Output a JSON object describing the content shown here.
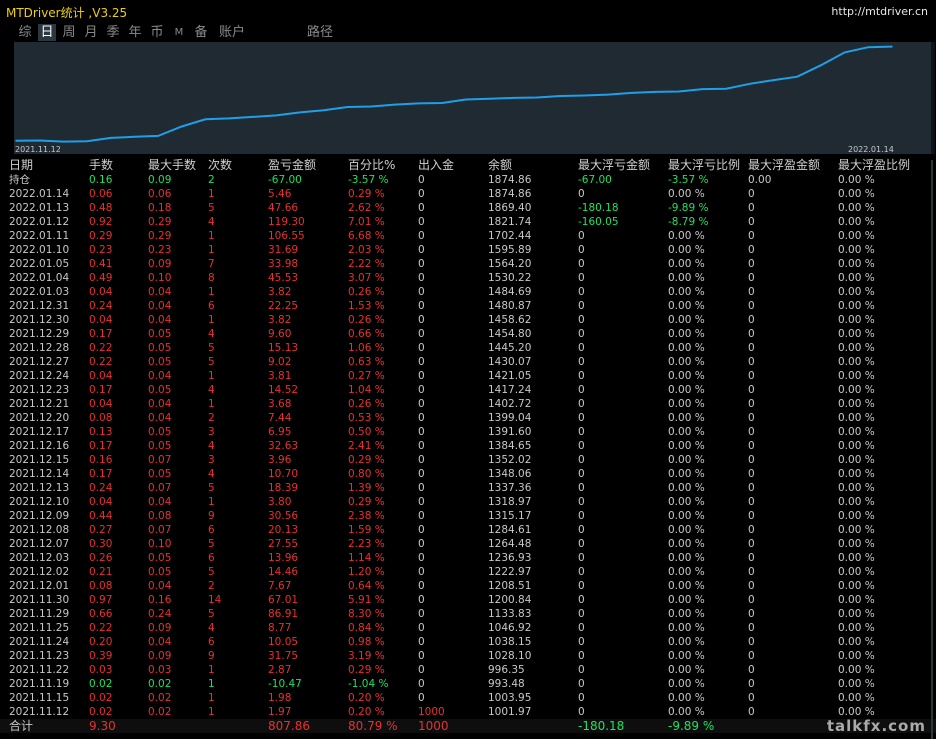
{
  "app": {
    "title": "MTDriver统计 ,V3.25",
    "url": "http://mtdriver.cn"
  },
  "tabs": [
    {
      "label": "综",
      "active": false
    },
    {
      "label": "日",
      "active": true
    },
    {
      "label": "周",
      "active": false
    },
    {
      "label": "月",
      "active": false
    },
    {
      "label": "季",
      "active": false
    },
    {
      "label": "年",
      "active": false
    },
    {
      "label": "币",
      "active": false
    },
    {
      "label": "M",
      "active": false
    },
    {
      "label": "备",
      "active": false
    },
    {
      "label": "账户",
      "active": false
    },
    {
      "label": "路径",
      "active": false
    }
  ],
  "chart_data": {
    "type": "line",
    "x_start_label": "2021.11.12",
    "x_end_label": "2022.01.14",
    "ylim": [
      990,
      1890
    ],
    "line_color": "#1ea0e8",
    "x": [
      "2021.11.12",
      "2021.11.15",
      "2021.11.19",
      "2021.11.22",
      "2021.11.23",
      "2021.11.24",
      "2021.11.25",
      "2021.11.29",
      "2021.11.30",
      "2021.12.01",
      "2021.12.02",
      "2021.12.03",
      "2021.12.07",
      "2021.12.08",
      "2021.12.09",
      "2021.12.10",
      "2021.12.13",
      "2021.12.14",
      "2021.12.15",
      "2021.12.16",
      "2021.12.17",
      "2021.12.20",
      "2021.12.21",
      "2021.12.23",
      "2021.12.24",
      "2021.12.27",
      "2021.12.28",
      "2021.12.29",
      "2021.12.30",
      "2021.12.31",
      "2022.01.03",
      "2022.01.04",
      "2022.01.05",
      "2022.01.10",
      "2022.01.11",
      "2022.01.12",
      "2022.01.13",
      "2022.01.14"
    ],
    "values": [
      1001.97,
      1003.95,
      993.48,
      996.35,
      1028.1,
      1038.15,
      1046.92,
      1133.83,
      1200.84,
      1208.51,
      1222.97,
      1236.93,
      1264.48,
      1284.61,
      1315.17,
      1318.97,
      1337.36,
      1348.06,
      1352.02,
      1384.65,
      1391.6,
      1399.04,
      1402.72,
      1417.24,
      1421.05,
      1430.07,
      1445.2,
      1454.8,
      1458.62,
      1480.87,
      1484.69,
      1530.22,
      1564.2,
      1595.89,
      1702.44,
      1821.74,
      1869.4,
      1874.86
    ]
  },
  "colors": {
    "positive": "#e83030",
    "negative": "#20e060",
    "neutral": "#c8c8c8",
    "header": "#d0d0d0",
    "total": "#e8c000"
  },
  "table": {
    "headers": [
      "日期",
      "手数",
      "最大手数",
      "次数",
      "盈亏金额",
      "百分比%",
      "出入金",
      "余额",
      "最大浮亏金额",
      "最大浮亏比例",
      "最大浮盈金额",
      "最大浮盈比例"
    ],
    "holding": {
      "date": "持仓",
      "lots": "0.16",
      "max_lots": "0.09",
      "count": "2",
      "pnl": "-67.00",
      "pct": "-3.57 %",
      "flow": "0",
      "balance": "1874.86",
      "max_loss": "-67.00",
      "max_loss_pct": "-3.57 %",
      "max_gain": "0.00",
      "max_gain_pct": "0.00 %",
      "sign": "neg"
    },
    "rows": [
      {
        "date": "2022.01.14",
        "lots": "0.06",
        "max_lots": "0.06",
        "count": "1",
        "pnl": "5.46",
        "pct": "0.29 %",
        "flow": "0",
        "balance": "1874.86",
        "max_loss": "0",
        "max_loss_pct": "0.00 %",
        "max_gain": "0",
        "max_gain_pct": "0.00 %",
        "sign": "pos"
      },
      {
        "date": "2022.01.13",
        "lots": "0.48",
        "max_lots": "0.18",
        "count": "5",
        "pnl": "47.66",
        "pct": "2.62 %",
        "flow": "0",
        "balance": "1869.40",
        "max_loss": "-180.18",
        "max_loss_pct": "-9.89 %",
        "max_gain": "0",
        "max_gain_pct": "0.00 %",
        "sign": "pos"
      },
      {
        "date": "2022.01.12",
        "lots": "0.92",
        "max_lots": "0.29",
        "count": "4",
        "pnl": "119.30",
        "pct": "7.01 %",
        "flow": "0",
        "balance": "1821.74",
        "max_loss": "-160.05",
        "max_loss_pct": "-8.79 %",
        "max_gain": "0",
        "max_gain_pct": "0.00 %",
        "sign": "pos"
      },
      {
        "date": "2022.01.11",
        "lots": "0.29",
        "max_lots": "0.29",
        "count": "1",
        "pnl": "106.55",
        "pct": "6.68 %",
        "flow": "0",
        "balance": "1702.44",
        "max_loss": "0",
        "max_loss_pct": "0.00 %",
        "max_gain": "0",
        "max_gain_pct": "0.00 %",
        "sign": "pos"
      },
      {
        "date": "2022.01.10",
        "lots": "0.23",
        "max_lots": "0.23",
        "count": "1",
        "pnl": "31.69",
        "pct": "2.03 %",
        "flow": "0",
        "balance": "1595.89",
        "max_loss": "0",
        "max_loss_pct": "0.00 %",
        "max_gain": "0",
        "max_gain_pct": "0.00 %",
        "sign": "pos"
      },
      {
        "date": "2022.01.05",
        "lots": "0.41",
        "max_lots": "0.09",
        "count": "7",
        "pnl": "33.98",
        "pct": "2.22 %",
        "flow": "0",
        "balance": "1564.20",
        "max_loss": "0",
        "max_loss_pct": "0.00 %",
        "max_gain": "0",
        "max_gain_pct": "0.00 %",
        "sign": "pos"
      },
      {
        "date": "2022.01.04",
        "lots": "0.49",
        "max_lots": "0.10",
        "count": "8",
        "pnl": "45.53",
        "pct": "3.07 %",
        "flow": "0",
        "balance": "1530.22",
        "max_loss": "0",
        "max_loss_pct": "0.00 %",
        "max_gain": "0",
        "max_gain_pct": "0.00 %",
        "sign": "pos"
      },
      {
        "date": "2022.01.03",
        "lots": "0.04",
        "max_lots": "0.04",
        "count": "1",
        "pnl": "3.82",
        "pct": "0.26 %",
        "flow": "0",
        "balance": "1484.69",
        "max_loss": "0",
        "max_loss_pct": "0.00 %",
        "max_gain": "0",
        "max_gain_pct": "0.00 %",
        "sign": "pos"
      },
      {
        "date": "2021.12.31",
        "lots": "0.24",
        "max_lots": "0.04",
        "count": "6",
        "pnl": "22.25",
        "pct": "1.53 %",
        "flow": "0",
        "balance": "1480.87",
        "max_loss": "0",
        "max_loss_pct": "0.00 %",
        "max_gain": "0",
        "max_gain_pct": "0.00 %",
        "sign": "pos"
      },
      {
        "date": "2021.12.30",
        "lots": "0.04",
        "max_lots": "0.04",
        "count": "1",
        "pnl": "3.82",
        "pct": "0.26 %",
        "flow": "0",
        "balance": "1458.62",
        "max_loss": "0",
        "max_loss_pct": "0.00 %",
        "max_gain": "0",
        "max_gain_pct": "0.00 %",
        "sign": "pos"
      },
      {
        "date": "2021.12.29",
        "lots": "0.17",
        "max_lots": "0.05",
        "count": "4",
        "pnl": "9.60",
        "pct": "0.66 %",
        "flow": "0",
        "balance": "1454.80",
        "max_loss": "0",
        "max_loss_pct": "0.00 %",
        "max_gain": "0",
        "max_gain_pct": "0.00 %",
        "sign": "pos"
      },
      {
        "date": "2021.12.28",
        "lots": "0.22",
        "max_lots": "0.05",
        "count": "5",
        "pnl": "15.13",
        "pct": "1.06 %",
        "flow": "0",
        "balance": "1445.20",
        "max_loss": "0",
        "max_loss_pct": "0.00 %",
        "max_gain": "0",
        "max_gain_pct": "0.00 %",
        "sign": "pos"
      },
      {
        "date": "2021.12.27",
        "lots": "0.22",
        "max_lots": "0.05",
        "count": "5",
        "pnl": "9.02",
        "pct": "0.63 %",
        "flow": "0",
        "balance": "1430.07",
        "max_loss": "0",
        "max_loss_pct": "0.00 %",
        "max_gain": "0",
        "max_gain_pct": "0.00 %",
        "sign": "pos"
      },
      {
        "date": "2021.12.24",
        "lots": "0.04",
        "max_lots": "0.04",
        "count": "1",
        "pnl": "3.81",
        "pct": "0.27 %",
        "flow": "0",
        "balance": "1421.05",
        "max_loss": "0",
        "max_loss_pct": "0.00 %",
        "max_gain": "0",
        "max_gain_pct": "0.00 %",
        "sign": "pos"
      },
      {
        "date": "2021.12.23",
        "lots": "0.17",
        "max_lots": "0.05",
        "count": "4",
        "pnl": "14.52",
        "pct": "1.04 %",
        "flow": "0",
        "balance": "1417.24",
        "max_loss": "0",
        "max_loss_pct": "0.00 %",
        "max_gain": "0",
        "max_gain_pct": "0.00 %",
        "sign": "pos"
      },
      {
        "date": "2021.12.21",
        "lots": "0.04",
        "max_lots": "0.04",
        "count": "1",
        "pnl": "3.68",
        "pct": "0.26 %",
        "flow": "0",
        "balance": "1402.72",
        "max_loss": "0",
        "max_loss_pct": "0.00 %",
        "max_gain": "0",
        "max_gain_pct": "0.00 %",
        "sign": "pos"
      },
      {
        "date": "2021.12.20",
        "lots": "0.08",
        "max_lots": "0.04",
        "count": "2",
        "pnl": "7.44",
        "pct": "0.53 %",
        "flow": "0",
        "balance": "1399.04",
        "max_loss": "0",
        "max_loss_pct": "0.00 %",
        "max_gain": "0",
        "max_gain_pct": "0.00 %",
        "sign": "pos"
      },
      {
        "date": "2021.12.17",
        "lots": "0.13",
        "max_lots": "0.05",
        "count": "3",
        "pnl": "6.95",
        "pct": "0.50 %",
        "flow": "0",
        "balance": "1391.60",
        "max_loss": "0",
        "max_loss_pct": "0.00 %",
        "max_gain": "0",
        "max_gain_pct": "0.00 %",
        "sign": "pos"
      },
      {
        "date": "2021.12.16",
        "lots": "0.17",
        "max_lots": "0.05",
        "count": "4",
        "pnl": "32.63",
        "pct": "2.41 %",
        "flow": "0",
        "balance": "1384.65",
        "max_loss": "0",
        "max_loss_pct": "0.00 %",
        "max_gain": "0",
        "max_gain_pct": "0.00 %",
        "sign": "pos"
      },
      {
        "date": "2021.12.15",
        "lots": "0.16",
        "max_lots": "0.07",
        "count": "3",
        "pnl": "3.96",
        "pct": "0.29 %",
        "flow": "0",
        "balance": "1352.02",
        "max_loss": "0",
        "max_loss_pct": "0.00 %",
        "max_gain": "0",
        "max_gain_pct": "0.00 %",
        "sign": "pos"
      },
      {
        "date": "2021.12.14",
        "lots": "0.17",
        "max_lots": "0.05",
        "count": "4",
        "pnl": "10.70",
        "pct": "0.80 %",
        "flow": "0",
        "balance": "1348.06",
        "max_loss": "0",
        "max_loss_pct": "0.00 %",
        "max_gain": "0",
        "max_gain_pct": "0.00 %",
        "sign": "pos"
      },
      {
        "date": "2021.12.13",
        "lots": "0.24",
        "max_lots": "0.07",
        "count": "5",
        "pnl": "18.39",
        "pct": "1.39 %",
        "flow": "0",
        "balance": "1337.36",
        "max_loss": "0",
        "max_loss_pct": "0.00 %",
        "max_gain": "0",
        "max_gain_pct": "0.00 %",
        "sign": "pos"
      },
      {
        "date": "2021.12.10",
        "lots": "0.04",
        "max_lots": "0.04",
        "count": "1",
        "pnl": "3.80",
        "pct": "0.29 %",
        "flow": "0",
        "balance": "1318.97",
        "max_loss": "0",
        "max_loss_pct": "0.00 %",
        "max_gain": "0",
        "max_gain_pct": "0.00 %",
        "sign": "pos"
      },
      {
        "date": "2021.12.09",
        "lots": "0.44",
        "max_lots": "0.08",
        "count": "9",
        "pnl": "30.56",
        "pct": "2.38 %",
        "flow": "0",
        "balance": "1315.17",
        "max_loss": "0",
        "max_loss_pct": "0.00 %",
        "max_gain": "0",
        "max_gain_pct": "0.00 %",
        "sign": "pos"
      },
      {
        "date": "2021.12.08",
        "lots": "0.27",
        "max_lots": "0.07",
        "count": "6",
        "pnl": "20.13",
        "pct": "1.59 %",
        "flow": "0",
        "balance": "1284.61",
        "max_loss": "0",
        "max_loss_pct": "0.00 %",
        "max_gain": "0",
        "max_gain_pct": "0.00 %",
        "sign": "pos"
      },
      {
        "date": "2021.12.07",
        "lots": "0.30",
        "max_lots": "0.10",
        "count": "5",
        "pnl": "27.55",
        "pct": "2.23 %",
        "flow": "0",
        "balance": "1264.48",
        "max_loss": "0",
        "max_loss_pct": "0.00 %",
        "max_gain": "0",
        "max_gain_pct": "0.00 %",
        "sign": "pos"
      },
      {
        "date": "2021.12.03",
        "lots": "0.26",
        "max_lots": "0.05",
        "count": "6",
        "pnl": "13.96",
        "pct": "1.14 %",
        "flow": "0",
        "balance": "1236.93",
        "max_loss": "0",
        "max_loss_pct": "0.00 %",
        "max_gain": "0",
        "max_gain_pct": "0.00 %",
        "sign": "pos"
      },
      {
        "date": "2021.12.02",
        "lots": "0.21",
        "max_lots": "0.05",
        "count": "5",
        "pnl": "14.46",
        "pct": "1.20 %",
        "flow": "0",
        "balance": "1222.97",
        "max_loss": "0",
        "max_loss_pct": "0.00 %",
        "max_gain": "0",
        "max_gain_pct": "0.00 %",
        "sign": "pos"
      },
      {
        "date": "2021.12.01",
        "lots": "0.08",
        "max_lots": "0.04",
        "count": "2",
        "pnl": "7.67",
        "pct": "0.64 %",
        "flow": "0",
        "balance": "1208.51",
        "max_loss": "0",
        "max_loss_pct": "0.00 %",
        "max_gain": "0",
        "max_gain_pct": "0.00 %",
        "sign": "pos"
      },
      {
        "date": "2021.11.30",
        "lots": "0.97",
        "max_lots": "0.16",
        "count": "14",
        "pnl": "67.01",
        "pct": "5.91 %",
        "flow": "0",
        "balance": "1200.84",
        "max_loss": "0",
        "max_loss_pct": "0.00 %",
        "max_gain": "0",
        "max_gain_pct": "0.00 %",
        "sign": "pos"
      },
      {
        "date": "2021.11.29",
        "lots": "0.66",
        "max_lots": "0.24",
        "count": "5",
        "pnl": "86.91",
        "pct": "8.30 %",
        "flow": "0",
        "balance": "1133.83",
        "max_loss": "0",
        "max_loss_pct": "0.00 %",
        "max_gain": "0",
        "max_gain_pct": "0.00 %",
        "sign": "pos"
      },
      {
        "date": "2021.11.25",
        "lots": "0.22",
        "max_lots": "0.09",
        "count": "4",
        "pnl": "8.77",
        "pct": "0.84 %",
        "flow": "0",
        "balance": "1046.92",
        "max_loss": "0",
        "max_loss_pct": "0.00 %",
        "max_gain": "0",
        "max_gain_pct": "0.00 %",
        "sign": "pos"
      },
      {
        "date": "2021.11.24",
        "lots": "0.20",
        "max_lots": "0.04",
        "count": "6",
        "pnl": "10.05",
        "pct": "0.98 %",
        "flow": "0",
        "balance": "1038.15",
        "max_loss": "0",
        "max_loss_pct": "0.00 %",
        "max_gain": "0",
        "max_gain_pct": "0.00 %",
        "sign": "pos"
      },
      {
        "date": "2021.11.23",
        "lots": "0.39",
        "max_lots": "0.09",
        "count": "9",
        "pnl": "31.75",
        "pct": "3.19 %",
        "flow": "0",
        "balance": "1028.10",
        "max_loss": "0",
        "max_loss_pct": "0.00 %",
        "max_gain": "0",
        "max_gain_pct": "0.00 %",
        "sign": "pos"
      },
      {
        "date": "2021.11.22",
        "lots": "0.03",
        "max_lots": "0.03",
        "count": "1",
        "pnl": "2.87",
        "pct": "0.29 %",
        "flow": "0",
        "balance": "996.35",
        "max_loss": "0",
        "max_loss_pct": "0.00 %",
        "max_gain": "0",
        "max_gain_pct": "0.00 %",
        "sign": "pos"
      },
      {
        "date": "2021.11.19",
        "lots": "0.02",
        "max_lots": "0.02",
        "count": "1",
        "pnl": "-10.47",
        "pct": "-1.04 %",
        "flow": "0",
        "balance": "993.48",
        "max_loss": "0",
        "max_loss_pct": "0.00 %",
        "max_gain": "0",
        "max_gain_pct": "0.00 %",
        "sign": "neg"
      },
      {
        "date": "2021.11.15",
        "lots": "0.02",
        "max_lots": "0.02",
        "count": "1",
        "pnl": "1.98",
        "pct": "0.20 %",
        "flow": "0",
        "balance": "1003.95",
        "max_loss": "0",
        "max_loss_pct": "0.00 %",
        "max_gain": "0",
        "max_gain_pct": "0.00 %",
        "sign": "pos"
      },
      {
        "date": "2021.11.12",
        "lots": "0.02",
        "max_lots": "0.02",
        "count": "1",
        "pnl": "1.97",
        "pct": "0.20 %",
        "flow": "1000",
        "balance": "1001.97",
        "max_loss": "0",
        "max_loss_pct": "0.00 %",
        "max_gain": "0",
        "max_gain_pct": "0.00 %",
        "sign": "pos"
      }
    ],
    "total": {
      "date": "合计",
      "lots": "9.30",
      "max_lots": "",
      "count": "",
      "pnl": "807.86",
      "pct": "80.79 %",
      "flow": "1000",
      "balance": "",
      "max_loss": "-180.18",
      "max_loss_pct": "-9.89 %",
      "max_gain": "",
      "max_gain_pct": ""
    }
  },
  "watermark": "talkfx.com"
}
